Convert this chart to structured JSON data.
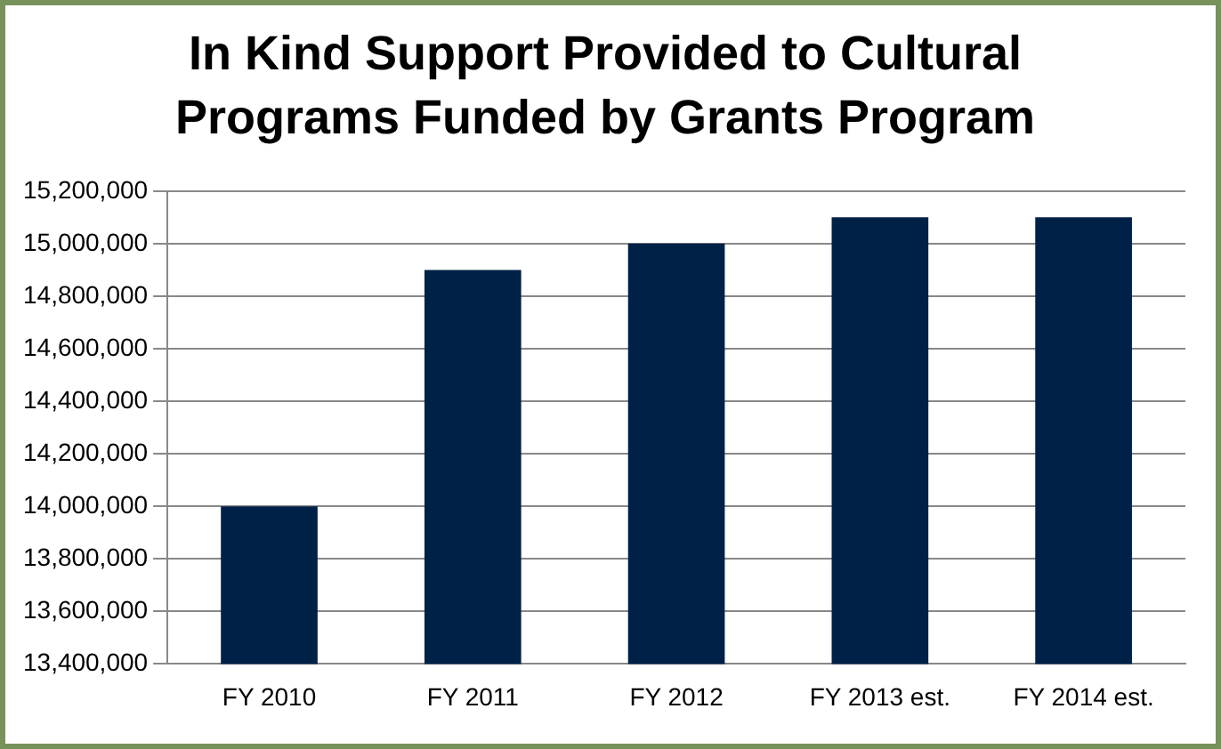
{
  "chart_data": {
    "type": "bar",
    "title": "In Kind Support Provided to Cultural Programs Funded by Grants Program",
    "categories": [
      "FY 2010",
      "FY 2011",
      "FY 2012",
      "FY 2013 est.",
      "FY 2014 est."
    ],
    "values": [
      14000000,
      14900000,
      15000000,
      15100000,
      15100000
    ],
    "color": "#002147",
    "ylim": [
      13400000,
      15200000
    ],
    "yticks": [
      {
        "value": 13400000,
        "label": "13,400,000"
      },
      {
        "value": 13600000,
        "label": "13,600,000"
      },
      {
        "value": 13800000,
        "label": "13,800,000"
      },
      {
        "value": 14000000,
        "label": "14,000,000"
      },
      {
        "value": 14200000,
        "label": "14,200,000"
      },
      {
        "value": 14400000,
        "label": "14,400,000"
      },
      {
        "value": 14600000,
        "label": "14,600,000"
      },
      {
        "value": 14800000,
        "label": "14,800,000"
      },
      {
        "value": 15000000,
        "label": "15,000,000"
      },
      {
        "value": 15200000,
        "label": "15,200,000"
      }
    ],
    "grid": "y",
    "legend": false
  }
}
